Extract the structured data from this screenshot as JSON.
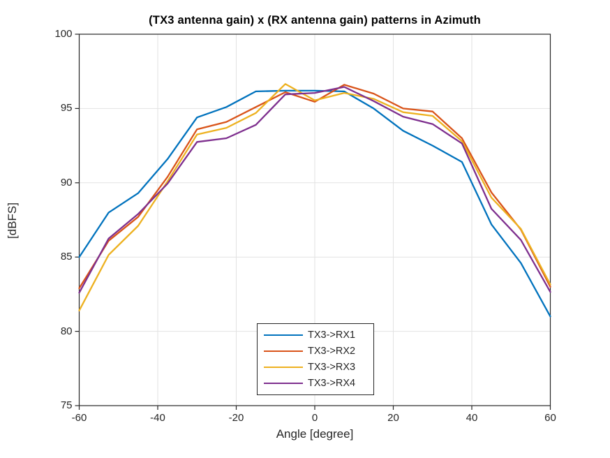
{
  "figure": {
    "background": "#ffffff"
  },
  "chart_data": {
    "type": "line",
    "title": "(TX3 antenna gain) x (RX antenna gain) patterns in Azimuth",
    "xlabel": "Angle [degree]",
    "ylabel": "[dBFS]",
    "xlim": [
      -60,
      60
    ],
    "ylim": [
      75,
      100
    ],
    "x_ticks": [
      -60,
      -40,
      -20,
      0,
      20,
      40,
      60
    ],
    "y_ticks": [
      75,
      80,
      85,
      90,
      95,
      100
    ],
    "grid": true,
    "legend_position": "inside-bottom-center",
    "colors": {
      "grid": "#e2e2e2",
      "axis": "#262626",
      "text": "#262626"
    },
    "x": [
      -60,
      -52.5,
      -45,
      -37.5,
      -30,
      -22.5,
      -15,
      -7.5,
      0,
      7.5,
      15,
      22.5,
      30,
      37.5,
      45,
      52.5,
      60
    ],
    "series": [
      {
        "name": "TX3->RX1",
        "color": "#0072BD",
        "values": [
          85.0,
          88.0,
          89.3,
          91.6,
          94.4,
          95.1,
          96.15,
          96.2,
          96.2,
          96.15,
          95.0,
          93.5,
          92.5,
          91.4,
          87.2,
          84.6,
          81.0
        ]
      },
      {
        "name": "TX3->RX2",
        "color": "#D95319",
        "values": [
          82.9,
          86.1,
          87.7,
          90.4,
          93.6,
          94.1,
          95.1,
          96.1,
          95.45,
          96.6,
          96.0,
          95.0,
          94.8,
          93.0,
          89.35,
          86.85,
          83.0
        ]
      },
      {
        "name": "TX3->RX3",
        "color": "#EDB120",
        "values": [
          81.4,
          85.15,
          87.1,
          90.1,
          93.25,
          93.7,
          94.7,
          96.65,
          95.55,
          96.05,
          95.65,
          94.75,
          94.5,
          92.8,
          89.0,
          86.9,
          83.15
        ]
      },
      {
        "name": "TX3->RX4",
        "color": "#7E2F8E",
        "values": [
          82.6,
          86.25,
          87.9,
          89.95,
          92.75,
          93.0,
          93.9,
          95.95,
          96.05,
          96.45,
          95.5,
          94.45,
          93.95,
          92.65,
          88.25,
          86.15,
          82.65
        ]
      }
    ]
  }
}
